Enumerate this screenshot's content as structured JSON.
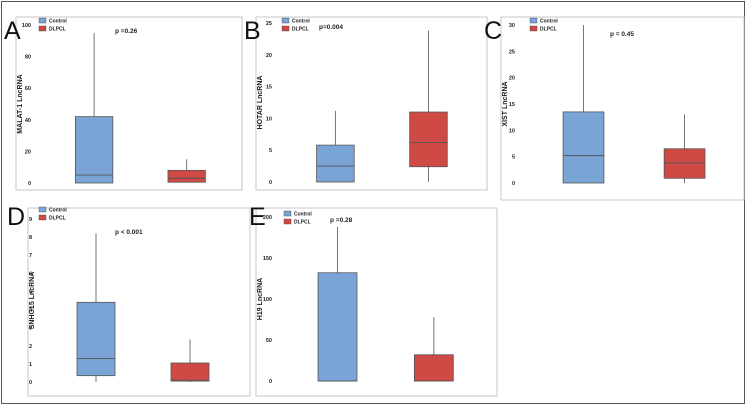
{
  "colors": {
    "control": "#7aa3d6",
    "dlpcl": "#cf4a45",
    "box_stroke": "#555555"
  },
  "legend": [
    "Control",
    "DLPCL"
  ],
  "chart_data": [
    {
      "id": "A",
      "type": "box",
      "ylabel": "MALAT-1 LncRNA",
      "annotation": "p =0.26",
      "ylim": [
        0,
        100
      ],
      "yticks": [
        0,
        20,
        40,
        60,
        80,
        100
      ],
      "series": [
        {
          "name": "Control",
          "min": 0,
          "q1": 0,
          "median": 5,
          "q3": 42,
          "max": 95
        },
        {
          "name": "DLPCL",
          "min": 0,
          "q1": 0.5,
          "median": 3,
          "q3": 8,
          "max": 15
        }
      ]
    },
    {
      "id": "B",
      "type": "box",
      "ylabel": "HOTAR LncRNA",
      "annotation": "p=0.004",
      "ylim": [
        0,
        25
      ],
      "yticks": [
        0,
        5,
        10,
        15,
        20,
        25
      ],
      "series": [
        {
          "name": "Control",
          "min": 0,
          "q1": 0,
          "median": 2.5,
          "q3": 5.8,
          "max": 11.2
        },
        {
          "name": "DLPCL",
          "min": 0,
          "q1": 2.4,
          "median": 6.2,
          "q3": 11,
          "max": 23.8
        }
      ]
    },
    {
      "id": "C",
      "type": "box",
      "ylabel": "XIST LncRNA",
      "annotation": "p = 0.45",
      "ylim": [
        0,
        30
      ],
      "yticks": [
        0,
        5,
        10,
        15,
        20,
        25,
        30
      ],
      "series": [
        {
          "name": "Control",
          "min": 0,
          "q1": 0,
          "median": 5.2,
          "q3": 13.5,
          "max": 30
        },
        {
          "name": "DLPCL",
          "min": 0,
          "q1": 0.9,
          "median": 3.8,
          "q3": 6.5,
          "max": 13
        }
      ]
    },
    {
      "id": "D",
      "type": "box",
      "ylabel": "SNHG15 LncRNA",
      "annotation": "p < 0.001",
      "ylim": [
        0,
        9
      ],
      "yticks": [
        0,
        1,
        2,
        3,
        4,
        5,
        6,
        7,
        8,
        9
      ],
      "series": [
        {
          "name": "Control",
          "min": 0,
          "q1": 0.35,
          "median": 1.3,
          "q3": 4.4,
          "max": 8.2
        },
        {
          "name": "DLPCL",
          "min": 0,
          "q1": 0.05,
          "median": 0.1,
          "q3": 1.05,
          "max": 2.35
        }
      ]
    },
    {
      "id": "E",
      "type": "box",
      "ylabel": "H19 LncRNA",
      "annotation": "p =0.28",
      "ylim": [
        0,
        200
      ],
      "yticks": [
        0,
        50,
        100,
        150,
        200
      ],
      "series": [
        {
          "name": "Control",
          "min": 0,
          "q1": 0,
          "median": 0,
          "q3": 132,
          "max": 188
        },
        {
          "name": "DLPCL",
          "min": 0,
          "q1": 0,
          "median": 0,
          "q3": 32,
          "max": 78
        }
      ]
    }
  ]
}
